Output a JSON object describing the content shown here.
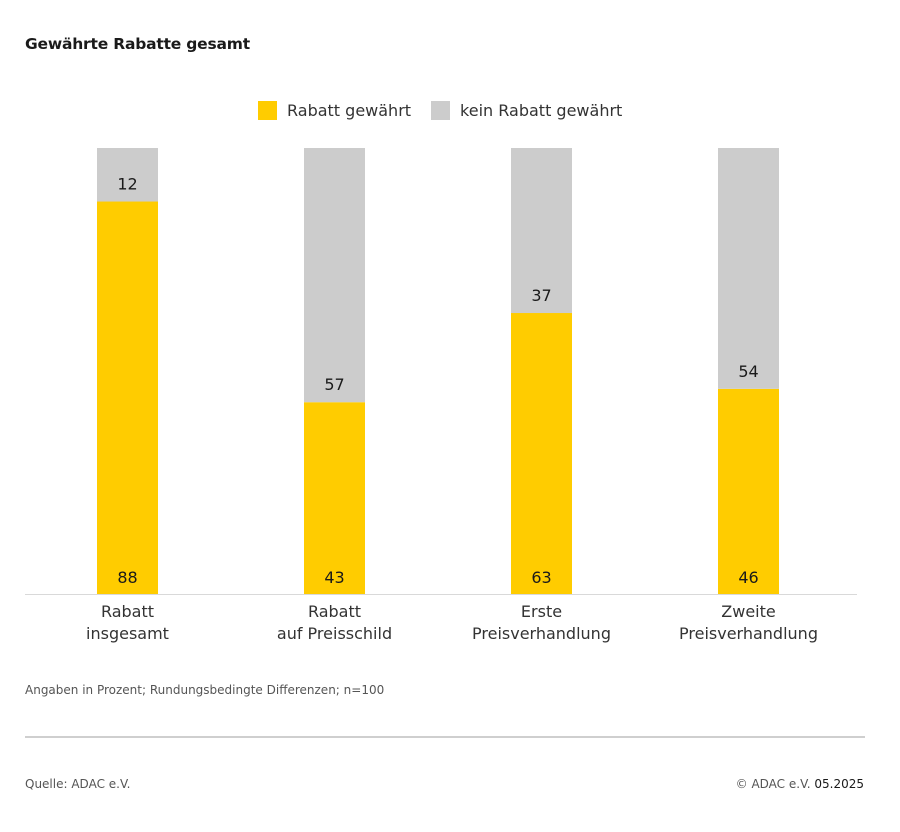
{
  "title": "Gewährte Rabatte gesamt",
  "colors": {
    "yellow": "#FFCC00",
    "gray": "#CCCCCC",
    "axis": "#D9D9D9",
    "text": "#1A1A1A"
  },
  "legend": [
    {
      "label": "Rabatt gewährt",
      "color": "#FFCC00"
    },
    {
      "label": "kein Rabatt gewährt",
      "color": "#CCCCCC"
    }
  ],
  "chart_data": {
    "type": "bar",
    "stacked": true,
    "categories": [
      [
        "Rabatt",
        "insgesamt"
      ],
      [
        "Rabatt",
        "auf Preisschild"
      ],
      [
        "Erste",
        "Preisverhandlung"
      ],
      [
        "Zweite",
        "Preisverhandlung"
      ]
    ],
    "series": [
      {
        "name": "Rabatt gewährt",
        "color": "#FFCC00",
        "values": [
          88,
          43,
          63,
          46
        ]
      },
      {
        "name": "kein Rabatt gewährt",
        "color": "#CCCCCC",
        "values": [
          12,
          57,
          37,
          54
        ]
      }
    ],
    "ylim": [
      0,
      100
    ],
    "grid": false,
    "legend_position": "top"
  },
  "footnote": "Angaben in Prozent; Rundungsbedingte Differenzen; n=100",
  "source": "Quelle: ADAC e.V.",
  "copyright_prefix": "© ADAC e.V.",
  "copyright_date": "05.2025"
}
